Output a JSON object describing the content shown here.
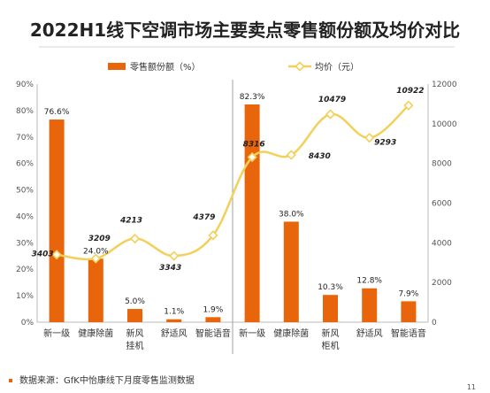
{
  "title": "2022H1线下空调市场主要卖点零售额份额及均价对比",
  "source": "数据来源：GfK中怡康线下月度零售监测数据",
  "page_number": "11",
  "colors": {
    "bar": "#e8650b",
    "line": "#f2d05a",
    "text": "#222222",
    "axis": "#555555",
    "divider": "#a0a0a0"
  },
  "chart_data": {
    "type": "bar",
    "categories": [
      "新一级",
      "健康除菌",
      "新风挂机",
      "舒适风",
      "智能语音",
      "新一级",
      "健康除菌",
      "新风柜机",
      "舒适风",
      "智能语音"
    ],
    "tick_labels": [
      [
        "新一级"
      ],
      [
        "健康除菌"
      ],
      [
        "新风",
        "挂机"
      ],
      [
        "舒适风"
      ],
      [
        "智能语音"
      ],
      [
        "新一级"
      ],
      [
        "健康除菌"
      ],
      [
        "新风",
        "柜机"
      ],
      [
        "舒适风"
      ],
      [
        "智能语音"
      ]
    ],
    "series": [
      {
        "name": "零售额份额（%）",
        "type": "bar",
        "axis": "left",
        "values": [
          76.6,
          24.0,
          5.0,
          1.1,
          1.9,
          82.3,
          38.0,
          10.3,
          12.8,
          7.9
        ],
        "labels": [
          "76.6%",
          "24.0%",
          "5.0%",
          "1.1%",
          "1.9%",
          "82.3%",
          "38.0%",
          "10.3%",
          "12.8%",
          "7.9%"
        ]
      },
      {
        "name": "均价（元）",
        "type": "line",
        "axis": "right",
        "values": [
          3403,
          3209,
          4213,
          3343,
          4379,
          8316,
          8430,
          10479,
          9293,
          10922
        ],
        "labels": [
          "3403",
          "3209",
          "4213",
          "3343",
          "4379",
          "8316",
          "8430",
          "10479",
          "9293",
          "10922"
        ]
      }
    ],
    "ylim_left": [
      0,
      90
    ],
    "yticks_left": [
      "0%",
      "10%",
      "20%",
      "30%",
      "40%",
      "50%",
      "60%",
      "70%",
      "80%",
      "90%"
    ],
    "ylim_right": [
      0,
      12000
    ],
    "yticks_right": [
      "0",
      "2000",
      "4000",
      "6000",
      "8000",
      "10000",
      "12000"
    ],
    "legend_position": "top",
    "grid": false
  }
}
